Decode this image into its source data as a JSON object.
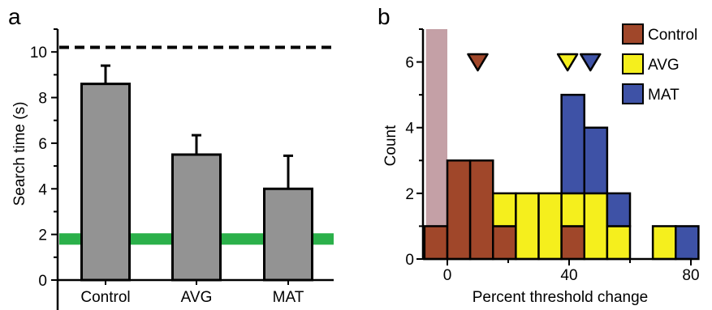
{
  "chart_data": [
    {
      "panel": "a",
      "type": "bar",
      "categories": [
        "Control",
        "AVG",
        "MAT"
      ],
      "values": [
        8.6,
        5.5,
        4.0
      ],
      "error_upper": [
        9.4,
        6.35,
        5.45
      ],
      "ylabel": "Search time (s)",
      "xlabel": "",
      "ylim": [
        0,
        11
      ],
      "yticks": [
        0,
        2,
        4,
        6,
        8,
        10
      ],
      "reference_line": {
        "value": 10.2,
        "style": "dashed"
      },
      "reference_band": {
        "range": [
          1.55,
          2.05
        ]
      },
      "colors": {
        "bar": "#939393",
        "band": "#2bb04a"
      }
    },
    {
      "panel": "b",
      "type": "bar",
      "stacked": true,
      "xlabel": "Percent threshold change",
      "ylabel": "Count",
      "xlim": [
        -10,
        80
      ],
      "ylim": [
        0,
        7
      ],
      "xticks": [
        0,
        40,
        80
      ],
      "yticks": [
        0,
        2,
        4,
        6
      ],
      "bin_width": 7.5,
      "bins": [
        -7.5,
        0,
        7.5,
        15,
        22.5,
        30,
        37.5,
        45,
        52.5,
        60,
        67.5,
        75
      ],
      "series": [
        {
          "name": "Control",
          "color": "#a0472a",
          "values": [
            1,
            3,
            3,
            1,
            0,
            0,
            1,
            0,
            0,
            0,
            0,
            0
          ]
        },
        {
          "name": "AVG",
          "color": "#f5ef1d",
          "values": [
            0,
            0,
            0,
            1,
            2,
            2,
            1,
            2,
            1,
            0,
            1,
            0
          ]
        },
        {
          "name": "MAT",
          "color": "#3e52a6",
          "values": [
            0,
            0,
            0,
            0,
            0,
            0,
            3,
            2,
            1,
            0,
            0,
            1
          ]
        }
      ],
      "shaded_region": {
        "x_range": [
          -7,
          0
        ],
        "color": "#c4a0a6"
      },
      "means": [
        {
          "series": "Control",
          "x": 10
        },
        {
          "series": "AVG",
          "x": 39.5
        },
        {
          "series": "MAT",
          "x": 47
        }
      ],
      "legend_position": "top-right"
    }
  ]
}
